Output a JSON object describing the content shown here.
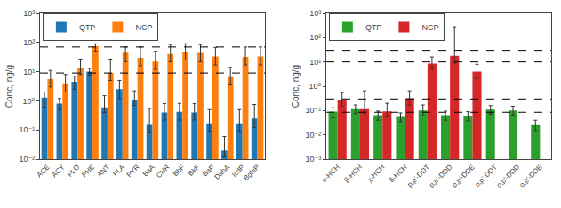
{
  "chart_data": [
    {
      "type": "bar",
      "categories": [
        "ACE",
        "ACY",
        "FLO",
        "PHE",
        "ANT",
        "FLA",
        "PYR",
        "BaA",
        "CHR",
        "BbF",
        "BkF",
        "BaP",
        "DahA",
        "IcdP",
        "BghiP"
      ],
      "series": [
        {
          "name": "QTP",
          "values": [
            1.3,
            0.8,
            4.5,
            10.0,
            0.6,
            2.5,
            1.1,
            0.15,
            0.4,
            0.42,
            0.4,
            0.17,
            0.02,
            0.17,
            0.25
          ],
          "error_low": [
            0.6,
            0.5,
            2.5,
            7.5,
            0.4,
            1.2,
            0.7,
            0.08,
            0.22,
            0.22,
            0.22,
            0.09,
            0.012,
            0.09,
            0.12
          ],
          "error_high": [
            2.0,
            1.2,
            7.0,
            13.0,
            1.5,
            5.0,
            2.2,
            0.55,
            0.8,
            0.82,
            0.8,
            0.5,
            0.06,
            0.5,
            0.75
          ]
        },
        {
          "name": "NCP",
          "values": [
            5.5,
            4.0,
            13.0,
            75.0,
            9.0,
            45.0,
            30.0,
            22.0,
            40.0,
            48.0,
            44.0,
            33.0,
            6.5,
            32.0,
            33.0
          ],
          "error_low": [
            3.0,
            2.0,
            8.0,
            50.0,
            5.0,
            22.0,
            16.0,
            12.0,
            22.0,
            25.0,
            22.0,
            17.0,
            3.5,
            17.0,
            17.0
          ],
          "error_high": [
            11.0,
            8.0,
            27.0,
            90.0,
            27.0,
            70.0,
            70.0,
            50.0,
            85.0,
            90.0,
            85.0,
            68.0,
            14.0,
            70.0,
            70.0
          ]
        }
      ],
      "reference_lines": [
        9.0,
        70.0
      ],
      "ylabel": "Conc, ng/g",
      "ylim": [
        0.01,
        1000
      ],
      "yticks": [
        {
          "value": 0.01,
          "label": "10⁻²"
        },
        {
          "value": 0.1,
          "label": "10⁻¹"
        },
        {
          "value": 1,
          "label": "10⁰"
        },
        {
          "value": 10,
          "label": "10¹"
        },
        {
          "value": 100,
          "label": "10²"
        },
        {
          "value": 1000,
          "label": "10³"
        }
      ],
      "log": "y",
      "grid": false,
      "legend": "upper left"
    },
    {
      "type": "bar",
      "categories": [
        "α-HCH",
        "β-HCH",
        "χ-HCH",
        "δ-HCH",
        "p,p′-DDT",
        "p,p′-DDD",
        "p,p′-DDE",
        "o,p′-DDT",
        "o,p′-DDD",
        "o,p′-DDE"
      ],
      "series": [
        {
          "name": "QTP",
          "values": [
            0.09,
            0.115,
            0.065,
            0.055,
            0.1,
            0.065,
            0.06,
            0.11,
            0.1,
            0.025
          ],
          "error_low": [
            0.05,
            0.075,
            0.04,
            0.035,
            0.06,
            0.04,
            0.038,
            0.07,
            0.065,
            0.015
          ],
          "error_high": [
            0.13,
            0.17,
            0.095,
            0.08,
            0.17,
            0.095,
            0.09,
            0.16,
            0.15,
            0.04
          ]
        },
        {
          "name": "NCP",
          "values": [
            0.27,
            0.115,
            0.092,
            0.32,
            8.5,
            18.0,
            4.0,
            null,
            null,
            null
          ],
          "error_low": [
            0.15,
            0.06,
            0.055,
            0.17,
            5.0,
            9.0,
            2.2,
            null,
            null,
            null
          ],
          "error_high": [
            0.55,
            0.65,
            0.2,
            0.65,
            16.0,
            280.0,
            8.0,
            null,
            null,
            null
          ]
        }
      ],
      "reference_lines": [
        0.085,
        0.3,
        10.0,
        30.0
      ],
      "ylabel": "Conc, ng/g",
      "ylim": [
        0.001,
        1000
      ],
      "yticks": [
        {
          "value": 0.001,
          "label": "10⁻³"
        },
        {
          "value": 0.01,
          "label": "10⁻²"
        },
        {
          "value": 0.1,
          "label": "10⁻¹"
        },
        {
          "value": 1,
          "label": "10⁰"
        },
        {
          "value": 10,
          "label": "10¹"
        },
        {
          "value": 100,
          "label": "10²"
        },
        {
          "value": 1000,
          "label": "10³"
        }
      ],
      "log": "y",
      "grid": false,
      "legend": "upper left"
    }
  ]
}
